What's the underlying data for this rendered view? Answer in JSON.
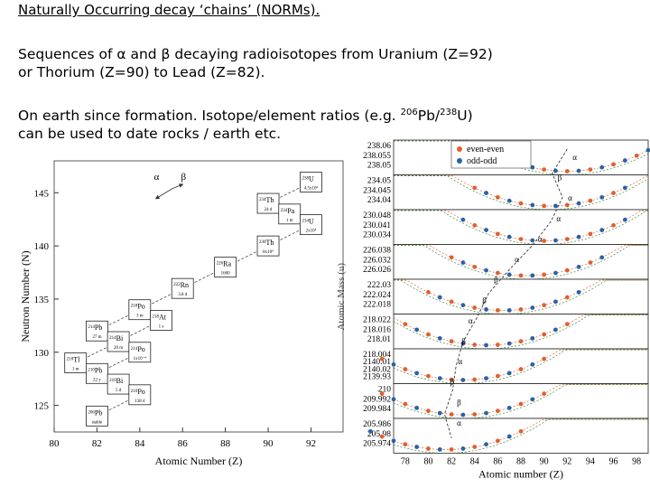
{
  "slide": {
    "title": "Naturally Occurring decay  ‘chains’ (NORMs).",
    "para1_line1": "Sequences of α and β decaying radioisotopes  from Uranium (Z=92)",
    "para1_line2": "or Thorium (Z=90) to Lead (Z=82).",
    "para2_prefix": "On earth since formation.  Isotope/element  ratios (e.g. ",
    "para2_sup1": "206",
    "para2_mid": "Pb/",
    "para2_sup2": "238",
    "para2_suffix": "U)",
    "para2_line2": "can be used to date  rocks / earth etc."
  },
  "chart_data": [
    {
      "type": "decay-chain",
      "xlabel": "Atomic Number (Z)",
      "ylabel": "Neutron Number (N)",
      "xlim": [
        80,
        93.5
      ],
      "ylim": [
        122.5,
        148
      ],
      "xticks": [
        80,
        82,
        84,
        86,
        88,
        90,
        92
      ],
      "yticks": [
        125,
        130,
        135,
        140,
        145
      ],
      "legend_alpha": "α",
      "legend_beta": "β",
      "nuclides": [
        {
          "z": 92,
          "n": 146,
          "sym": "U",
          "mass": "238",
          "hl": "4.5x10⁹"
        },
        {
          "z": 90,
          "n": 144,
          "sym": "Th",
          "mass": "234",
          "hl": "24 d"
        },
        {
          "z": 91,
          "n": 143,
          "sym": "Pa",
          "mass": "234",
          "hl": "1 m"
        },
        {
          "z": 92,
          "n": 142,
          "sym": "U",
          "mass": "234",
          "hl": "2x10⁵"
        },
        {
          "z": 90,
          "n": 140,
          "sym": "Th",
          "mass": "230",
          "hl": "8x10⁴"
        },
        {
          "z": 88,
          "n": 138,
          "sym": "Ra",
          "mass": "226",
          "hl": "1600"
        },
        {
          "z": 86,
          "n": 136,
          "sym": "Rn",
          "mass": "222",
          "hl": "3.8 d"
        },
        {
          "z": 84,
          "n": 134,
          "sym": "Po",
          "mass": "218",
          "hl": "3 m"
        },
        {
          "z": 85,
          "n": 133,
          "sym": "At",
          "mass": "218",
          "hl": "1 s"
        },
        {
          "z": 82,
          "n": 132,
          "sym": "Pb",
          "mass": "214",
          "hl": "27 m"
        },
        {
          "z": 83,
          "n": 131,
          "sym": "Bi",
          "mass": "214",
          "hl": "20 m"
        },
        {
          "z": 84,
          "n": 130,
          "sym": "Po",
          "mass": "214",
          "hl": "1x10⁻⁴"
        },
        {
          "z": 81,
          "n": 129,
          "sym": "Tl",
          "mass": "210",
          "hl": "1 m"
        },
        {
          "z": 82,
          "n": 128,
          "sym": "Pb",
          "mass": "210",
          "hl": "22 y"
        },
        {
          "z": 83,
          "n": 127,
          "sym": "Bi",
          "mass": "210",
          "hl": "5 d"
        },
        {
          "z": 84,
          "n": 126,
          "sym": "Po",
          "mass": "210",
          "hl": "138 d"
        },
        {
          "z": 82,
          "n": 124,
          "sym": "Pb",
          "mass": "206",
          "hl": "stable"
        }
      ]
    },
    {
      "type": "scatter",
      "xlabel": "Atomic number (Z)",
      "ylabel": "Atomic Mass (u)",
      "xticks": [
        78,
        80,
        82,
        84,
        86,
        88,
        90,
        92,
        94,
        96,
        98
      ],
      "legend": [
        {
          "name": "even-even",
          "color": "#e06030"
        },
        {
          "name": "odd-odd",
          "color": "#2a62a8"
        }
      ],
      "panel_labels": [
        [
          "238.06",
          "238.055",
          "238.05"
        ],
        [
          "234.05",
          "234.045",
          "234.04"
        ],
        [
          "230.048",
          "230.041",
          "230.034"
        ],
        [
          "226.038",
          "226.032",
          "226.026"
        ],
        [
          "222.03",
          "222.024",
          "222.018"
        ],
        [
          "218.022",
          "218.016",
          "218.01"
        ],
        [
          "218.004",
          "2140.01",
          "2140.02",
          "2139.93"
        ],
        [
          "210",
          "209.992",
          "209.984"
        ],
        [
          "205.986",
          "205.98",
          "205.974"
        ]
      ],
      "decay_labels": [
        "α",
        "β",
        "α",
        "α",
        "α",
        "α",
        "β",
        "β",
        "α",
        "β",
        "α",
        "β",
        "β",
        "α"
      ]
    }
  ]
}
